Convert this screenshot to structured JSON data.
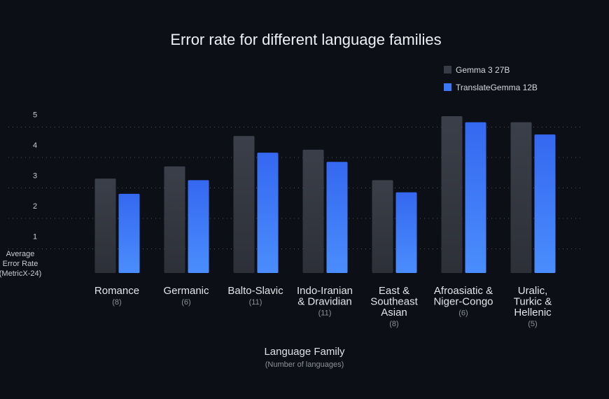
{
  "chart_data": {
    "type": "bar",
    "title": "Error rate for different language families",
    "xlabel": "Language Family",
    "xlabel_sub": "(Number of languages)",
    "ylabel_lines": [
      "Average",
      "Error Rate",
      "(MetricX-24)"
    ],
    "ylim": [
      0,
      5
    ],
    "yticks": [
      1,
      2,
      3,
      4,
      5
    ],
    "grid": "dotted horizontal",
    "legend_position": "top-right",
    "categories": [
      {
        "lines": [
          "Romance"
        ],
        "count": "(8)"
      },
      {
        "lines": [
          "Germanic"
        ],
        "count": "(6)"
      },
      {
        "lines": [
          "Balto-Slavic"
        ],
        "count": "(11)"
      },
      {
        "lines": [
          "Indo-Iranian",
          "& Dravidian"
        ],
        "count": "(11)"
      },
      {
        "lines": [
          "East &",
          "Southeast",
          "Asian"
        ],
        "count": "(8)"
      },
      {
        "lines": [
          "Afroasiatic &",
          "Niger-Congo"
        ],
        "count": "(6)"
      },
      {
        "lines": [
          "Uralic,",
          "Turkic &",
          "Hellenic"
        ],
        "count": "(5)"
      }
    ],
    "series": [
      {
        "name": "Gemma 3 27B",
        "color": "#383c46",
        "values": [
          3.1,
          3.5,
          4.5,
          4.05,
          3.05,
          5.15,
          4.95
        ]
      },
      {
        "name": "TranslateGemma 12B",
        "color": "#3b78f6",
        "values": [
          2.6,
          3.05,
          3.95,
          3.65,
          2.65,
          4.95,
          4.55
        ]
      }
    ]
  }
}
